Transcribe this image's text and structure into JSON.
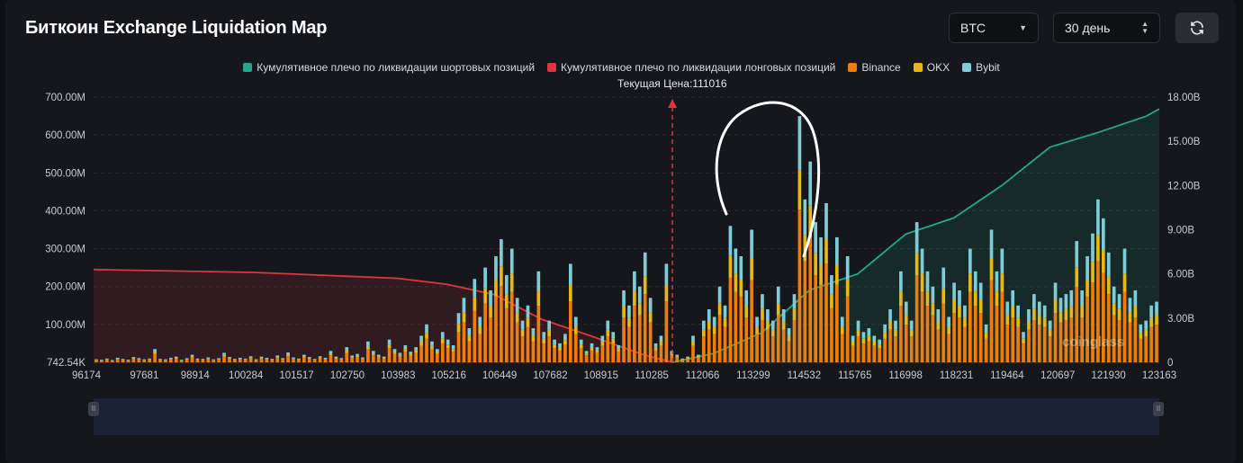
{
  "header": {
    "title": "Биткоин Exchange Liquidation Map",
    "coin_value": "BTC",
    "range_value": "30 день"
  },
  "legend": [
    {
      "label": "Кумулятивное плечо по ликвидации шортовых позиций",
      "color": "#22a88a"
    },
    {
      "label": "Кумулятивное плечо по ликвидации лонговых позиций",
      "color": "#e0343f"
    },
    {
      "label": "Binance",
      "color": "#f07c0c"
    },
    {
      "label": "OKX",
      "color": "#e8b912"
    },
    {
      "label": "Bybit",
      "color": "#7ecdd6"
    }
  ],
  "current_price_label": "Текущая Цена:111016",
  "watermark": "coinglass",
  "icons": {
    "refresh": "refresh-icon",
    "caret": "chevron-down-icon",
    "sort": "updown-icon"
  },
  "chart_data": {
    "type": "bar",
    "stacked": true,
    "current_price": 111016,
    "x_tick_labels": [
      "96174",
      "97681",
      "98914",
      "100284",
      "101517",
      "102750",
      "103983",
      "105216",
      "106449",
      "107682",
      "108915",
      "110285",
      "112066",
      "113299",
      "114532",
      "115765",
      "116998",
      "118231",
      "119464",
      "120697",
      "121930",
      "123163"
    ],
    "y_left_ticks": [
      "742.54K",
      "100.00M",
      "200.00M",
      "300.00M",
      "400.00M",
      "500.00M",
      "600.00M",
      "700.00M"
    ],
    "y_left_range": [
      0,
      700000000
    ],
    "y_right_ticks": [
      "0",
      "3.00B",
      "6.00B",
      "9.00B",
      "12.00B",
      "15.00B",
      "18.00B"
    ],
    "y_right_range": [
      0,
      18000000000
    ],
    "grid": true,
    "x_range": [
      96174,
      123500
    ],
    "bar_count": 200,
    "stack_profile": {
      "binance_share": 0.62,
      "okx_share": 0.16,
      "bybit_share": 0.22
    },
    "bar_totals_M": [
      8,
      7,
      10,
      6,
      12,
      9,
      7,
      14,
      11,
      8,
      10,
      35,
      9,
      8,
      12,
      15,
      7,
      11,
      20,
      10,
      9,
      13,
      8,
      11,
      25,
      14,
      9,
      12,
      10,
      16,
      8,
      15,
      12,
      9,
      18,
      11,
      26,
      13,
      10,
      20,
      14,
      9,
      16,
      12,
      30,
      15,
      11,
      40,
      18,
      22,
      13,
      55,
      30,
      20,
      15,
      60,
      35,
      25,
      45,
      28,
      40,
      70,
      100,
      55,
      35,
      80,
      60,
      45,
      130,
      170,
      90,
      220,
      120,
      250,
      190,
      280,
      325,
      230,
      300,
      170,
      110,
      150,
      90,
      240,
      80,
      110,
      60,
      50,
      75,
      260,
      120,
      60,
      30,
      50,
      40,
      70,
      110,
      80,
      45,
      190,
      150,
      240,
      200,
      290,
      170,
      50,
      70,
      260,
      30,
      20,
      10,
      15,
      70,
      20,
      110,
      140,
      120,
      200,
      150,
      360,
      300,
      280,
      190,
      350,
      120,
      180,
      140,
      110,
      200,
      140,
      90,
      180,
      650,
      430,
      530,
      370,
      330,
      420,
      230,
      330,
      120,
      280,
      70,
      110,
      80,
      90,
      70,
      60,
      100,
      140,
      110,
      240,
      160,
      110,
      370,
      300,
      240,
      200,
      140,
      250,
      120,
      210,
      190,
      150,
      300,
      240,
      210,
      100,
      350,
      240,
      300,
      160,
      190,
      150,
      80,
      140,
      180,
      160,
      150,
      110,
      210,
      170,
      180,
      190,
      320,
      190,
      280,
      340,
      430,
      380,
      290,
      200,
      180,
      300,
      170,
      190,
      100,
      110,
      150,
      160
    ],
    "series": [
      {
        "name": "Кумулятивное плечо по ликвидации лонговых позиций",
        "axis": "right",
        "x": [
          96174,
          100284,
          103983,
          105216,
          106449,
          107682,
          108915,
          110285,
          111016
        ],
        "y": [
          6300000000.0,
          6100000000.0,
          5700000000.0,
          5300000000.0,
          4600000000.0,
          2900000000.0,
          1800000000.0,
          500000000.0,
          0
        ]
      },
      {
        "name": "Кумулятивное плечо по ликвидации шортовых позиций",
        "axis": "right",
        "x": [
          111016,
          112066,
          113299,
          114532,
          115765,
          116998,
          118231,
          119464,
          120697,
          121930,
          123163,
          123500
        ],
        "y": [
          0,
          600000000.0,
          2000000000.0,
          4900000000.0,
          6000000000.0,
          8700000000.0,
          9800000000.0,
          12000000000.0,
          14600000000.0,
          15600000000.0,
          16700000000.0,
          17200000000.0
        ]
      }
    ]
  }
}
